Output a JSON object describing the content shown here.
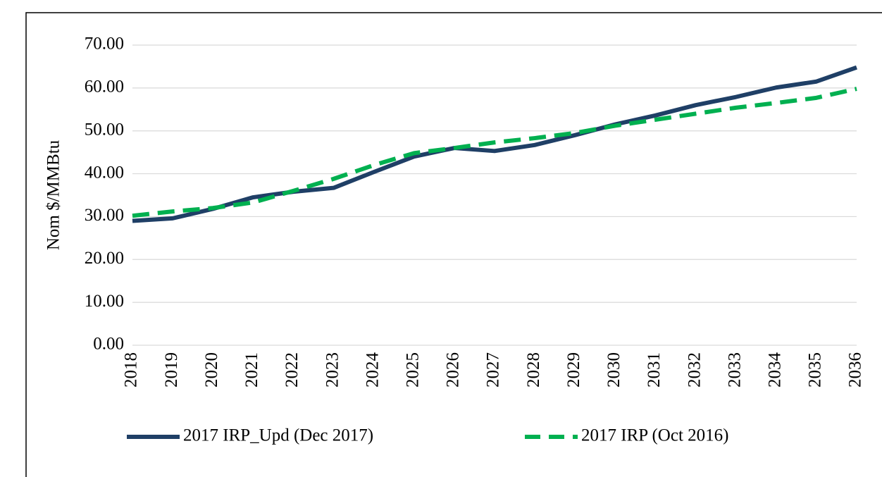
{
  "chart_data": {
    "type": "line",
    "y_label": "Nom $/MMBtu",
    "categories": [
      "2018",
      "2019",
      "2020",
      "2021",
      "2022",
      "2023",
      "2024",
      "2025",
      "2026",
      "2027",
      "2028",
      "2029",
      "2030",
      "2031",
      "2032",
      "2033",
      "2034",
      "2035",
      "2036"
    ],
    "series": [
      {
        "name": "2017 IRP_Upd (Dec 2017)",
        "color": "#1f3f66",
        "dash": false,
        "values": [
          29.0,
          29.6,
          31.8,
          34.5,
          35.8,
          36.7,
          40.4,
          44.0,
          46.0,
          45.3,
          46.7,
          49.0,
          51.5,
          53.6,
          56.0,
          57.9,
          60.1,
          61.5,
          64.8
        ]
      },
      {
        "name": "2017 IRP (Oct 2016)",
        "color": "#00b050",
        "dash": true,
        "values": [
          30.2,
          31.2,
          32.0,
          33.3,
          36.0,
          38.8,
          42.0,
          44.8,
          46.0,
          47.3,
          48.3,
          49.5,
          51.2,
          52.6,
          54.0,
          55.4,
          56.5,
          57.7,
          59.8
        ]
      }
    ],
    "ylim": [
      0,
      70
    ],
    "yticks": [
      {
        "value": 0,
        "label": "0.00"
      },
      {
        "value": 10,
        "label": "10.00"
      },
      {
        "value": 20,
        "label": "20.00"
      },
      {
        "value": 30,
        "label": "30.00"
      },
      {
        "value": 40,
        "label": "40.00"
      },
      {
        "value": 50,
        "label": "50.00"
      },
      {
        "value": 60,
        "label": "60.00"
      },
      {
        "value": 70,
        "label": "70.00"
      }
    ],
    "grid": true,
    "legend": "bottom"
  }
}
